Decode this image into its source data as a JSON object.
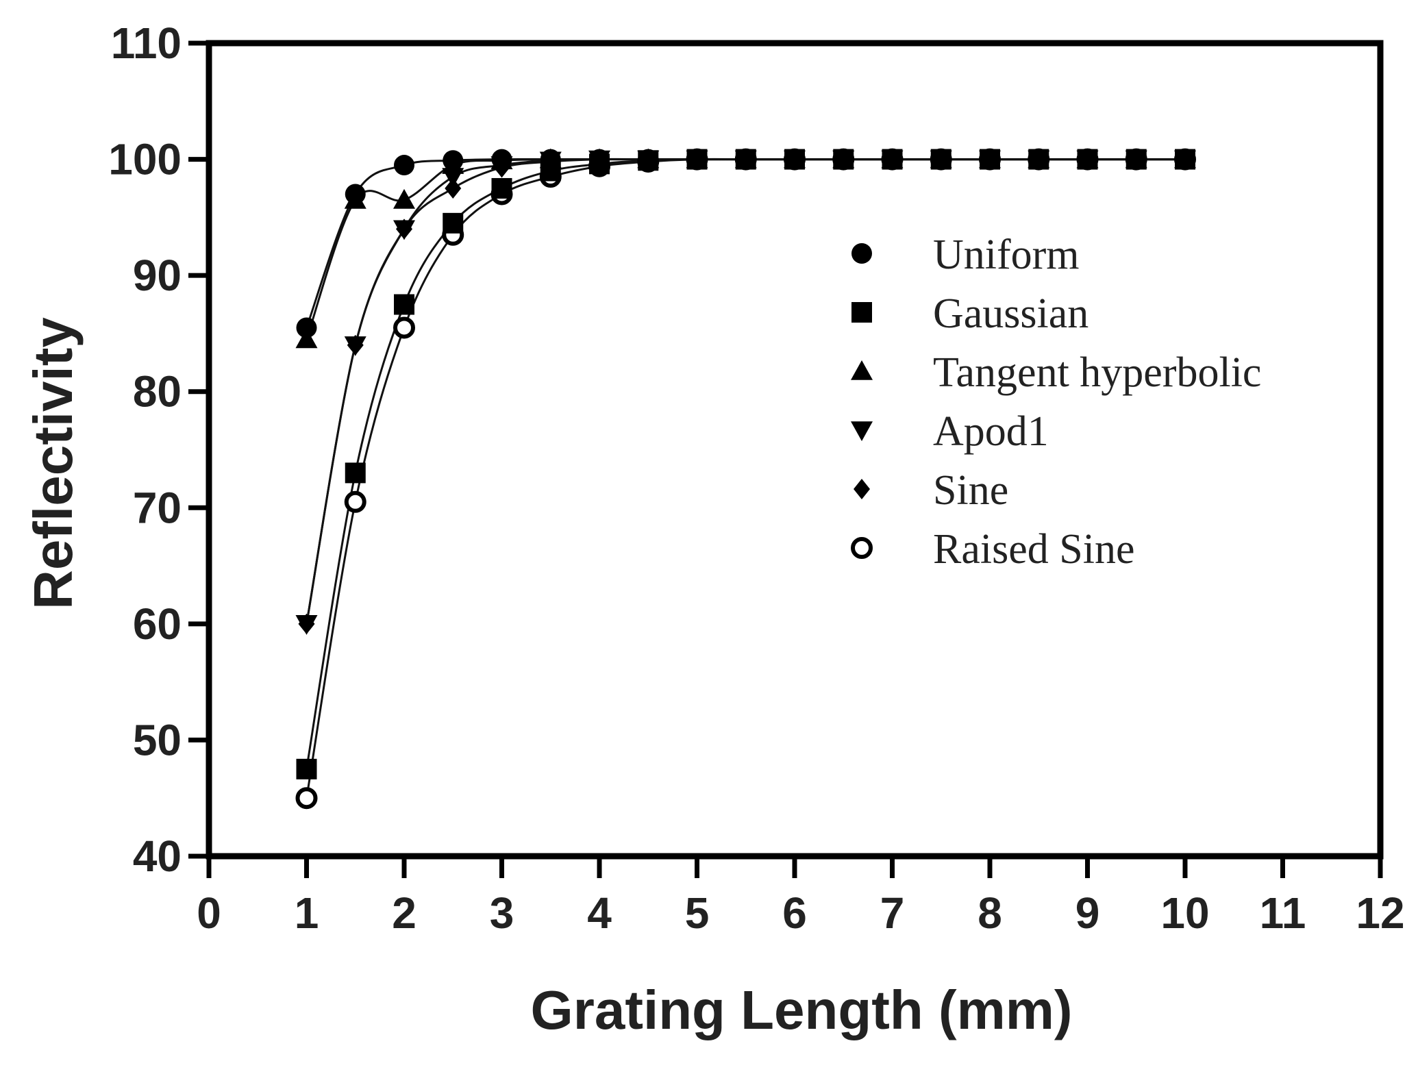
{
  "chart_data": {
    "type": "line",
    "title": "",
    "xlabel": "Grating Length (mm)",
    "ylabel": "Reflectivity",
    "xlim": [
      0,
      12
    ],
    "ylim": [
      40,
      110
    ],
    "xticks": [
      "0",
      "1",
      "2",
      "3",
      "4",
      "5",
      "6",
      "7",
      "8",
      "9",
      "10",
      "11",
      "12"
    ],
    "yticks": [
      "40",
      "50",
      "60",
      "70",
      "80",
      "90",
      "100",
      "110"
    ],
    "grid": false,
    "legend_position": "right",
    "series": [
      {
        "name": "Uniform",
        "marker": "circle",
        "x": [
          1,
          1.5,
          2,
          2.5,
          3,
          3.5,
          4,
          4.5,
          5,
          5.5,
          6,
          6.5,
          7,
          7.5,
          8,
          8.5,
          9,
          9.5,
          10
        ],
        "y": [
          85.5,
          97,
          99.5,
          99.9,
          100,
          100,
          100,
          100,
          100,
          100,
          100,
          100,
          100,
          100,
          100,
          100,
          100,
          100,
          100
        ]
      },
      {
        "name": "Gaussian",
        "marker": "square",
        "x": [
          1,
          1.5,
          2,
          2.5,
          3,
          3.5,
          4,
          4.5,
          5,
          5.5,
          6,
          6.5,
          7,
          7.5,
          8,
          8.5,
          9,
          9.5,
          10
        ],
        "y": [
          47.5,
          73,
          87.5,
          94.5,
          97.5,
          99,
          99.6,
          99.9,
          100,
          100,
          100,
          100,
          100,
          100,
          100,
          100,
          100,
          100,
          100
        ]
      },
      {
        "name": "Tangent hyperbolic",
        "marker": "triangle-up",
        "x": [
          1,
          1.5,
          2,
          2.5,
          3,
          3.5,
          4,
          4.5,
          5,
          5.5,
          6,
          6.5,
          7,
          7.5,
          8,
          8.5,
          9,
          9.5,
          10
        ],
        "y": [
          84.5,
          96.5,
          96.5,
          99.5,
          99.9,
          100,
          100,
          100,
          100,
          100,
          100,
          100,
          100,
          100,
          100,
          100,
          100,
          100,
          100
        ]
      },
      {
        "name": "Apod1",
        "marker": "triangle-down",
        "x": [
          1,
          1.5,
          2,
          2.5,
          3,
          3.5,
          4,
          4.5,
          5,
          5.5,
          6,
          6.5,
          7,
          7.5,
          8,
          8.5,
          9,
          9.5,
          10
        ],
        "y": [
          60,
          84,
          94,
          98.5,
          99.5,
          99.9,
          100,
          100,
          100,
          100,
          100,
          100,
          100,
          100,
          100,
          100,
          100,
          100,
          100
        ]
      },
      {
        "name": "Sine",
        "marker": "diamond",
        "x": [
          1,
          1.5,
          2,
          2.5,
          3,
          3.5,
          4,
          4.5,
          5,
          5.5,
          6,
          6.5,
          7,
          7.5,
          8,
          8.5,
          9,
          9.5,
          10
        ],
        "y": [
          60,
          84,
          94,
          97.5,
          99.3,
          99.8,
          100,
          100,
          100,
          100,
          100,
          100,
          100,
          100,
          100,
          100,
          100,
          100,
          100
        ]
      },
      {
        "name": "Raised Sine",
        "marker": "circle-open",
        "x": [
          1,
          1.5,
          2,
          2.5,
          3,
          3.5,
          4,
          4.5,
          5,
          5.5,
          6,
          6.5,
          7,
          7.5,
          8,
          8.5,
          9,
          9.5,
          10
        ],
        "y": [
          45,
          70.5,
          85.5,
          93.5,
          97,
          98.5,
          99.4,
          99.8,
          100,
          100,
          100,
          100,
          100,
          100,
          100,
          100,
          100,
          100,
          100
        ]
      }
    ],
    "colors": {
      "marker": "#000000",
      "line": "#111111",
      "axis": "#000000"
    }
  }
}
